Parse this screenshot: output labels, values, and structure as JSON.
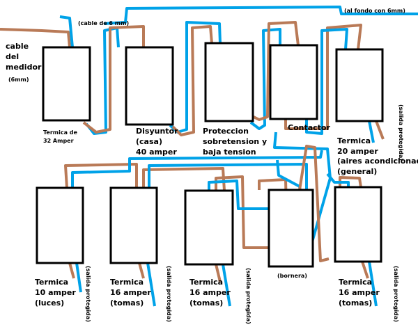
{
  "notes": {
    "meter_cable": [
      "cable",
      "del",
      "medidor",
      "(6mm)"
    ],
    "cable_6mm": "(cable de 6 mm)",
    "rear_6mm": "(al fondo con 6mm)"
  },
  "devices": [
    {
      "lines": [
        "Termica de",
        "32 Amper"
      ]
    },
    {
      "lines": [
        "Disyuntor",
        "(casa)",
        "40 amper"
      ]
    },
    {
      "lines": [
        "Proteccion",
        "sobretension y",
        "baja tension"
      ]
    },
    {
      "lines": [
        "Contactor"
      ]
    },
    {
      "lines": [
        "Termica",
        "20 amper",
        "(aires acondicionados)",
        "(general)"
      ],
      "output": "(salida protegida)"
    },
    {
      "lines": [
        "Termica",
        "10 amper",
        "(luces)"
      ],
      "output": "(salida protegida)"
    },
    {
      "lines": [
        "Termica",
        "16 amper",
        "(tomas)"
      ],
      "output": "(salida protegida)"
    },
    {
      "lines": [
        "Termica",
        "16 amper",
        "(tomas)"
      ],
      "output": "(salida protegida)"
    },
    {
      "lines": [
        "(bornera)"
      ]
    },
    {
      "lines": [
        "Termica",
        "16 amper",
        "(tomas)"
      ],
      "output": "(salida protegida)"
    }
  ]
}
